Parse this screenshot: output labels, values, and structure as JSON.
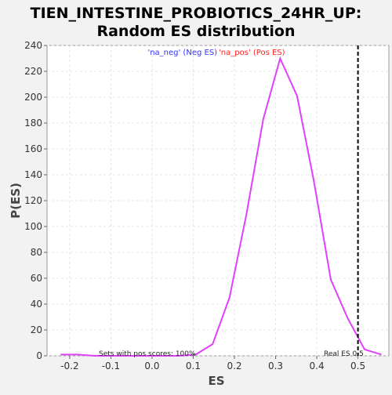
{
  "chart_data": {
    "type": "line",
    "title_line1": "TIEN_INTESTINE_PROBIOTICS_24HR_UP:",
    "title_line2": "Random ES distribution",
    "xlabel": "ES",
    "ylabel": "P(ES)",
    "xlim": [
      -0.255,
      0.575
    ],
    "ylim": [
      0,
      240
    ],
    "x_ticks": [
      -0.2,
      -0.1,
      0.0,
      0.1,
      0.2,
      0.3,
      0.4,
      0.5
    ],
    "x_tick_labels": [
      "-0.2",
      "-0.1",
      "0.0",
      "0.1",
      "0.2",
      "0.3",
      "0.4",
      "0.5"
    ],
    "y_ticks": [
      0,
      20,
      40,
      60,
      80,
      100,
      120,
      140,
      160,
      180,
      200,
      220,
      240
    ],
    "y_tick_labels": [
      "0",
      "20",
      "40",
      "60",
      "80",
      "100",
      "120",
      "140",
      "160",
      "180",
      "200",
      "220",
      "240"
    ],
    "grid": true,
    "legend": {
      "placement": "top-center",
      "entries": [
        {
          "name": "'na_neg' (Neg ES)",
          "color": "#3333ff"
        },
        {
          "name": "'na_pos' (Pos ES)",
          "color": "#ff2222"
        }
      ]
    },
    "series": [
      {
        "color": "#e040fb",
        "x": [
          -0.222,
          -0.181,
          -0.14,
          -0.099,
          -0.058,
          -0.017,
          0.024,
          0.065,
          0.106,
          0.147,
          0.188,
          0.229,
          0.27,
          0.311,
          0.352,
          0.393,
          0.434,
          0.475,
          0.516,
          0.557
        ],
        "y": [
          1,
          1,
          0,
          0,
          0,
          0,
          0,
          0,
          1,
          9,
          45,
          109,
          183,
          230,
          201,
          135,
          59,
          29,
          5,
          1
        ]
      }
    ],
    "real_es": {
      "x": 0.5,
      "label": "Real ES 0.5",
      "color": "#000000",
      "style": "dashed"
    },
    "annotation": "Sets with pos scores: 100%"
  }
}
